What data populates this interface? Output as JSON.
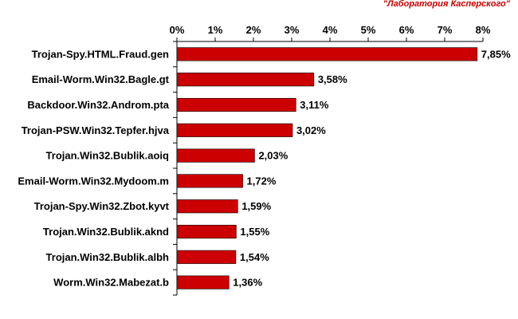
{
  "watermark": "\"Лаборатория Касперского\"",
  "colors": {
    "bar": "#cc0000",
    "bar_stroke": "#000000",
    "axis": "#000000",
    "watermark": "#cc0000"
  },
  "chart_data": {
    "type": "bar",
    "orientation": "horizontal",
    "title": "",
    "xlabel": "",
    "ylabel": "",
    "xlim": [
      0,
      8
    ],
    "xticks": [
      0,
      1,
      2,
      3,
      4,
      5,
      6,
      7,
      8
    ],
    "xtick_labels": [
      "0%",
      "1%",
      "2%",
      "3%",
      "4%",
      "5%",
      "6%",
      "7%",
      "8%"
    ],
    "x_axis_position": "top",
    "grid": false,
    "legend": "none",
    "categories": [
      "Trojan-Spy.HTML.Fraud.gen",
      "Email-Worm.Win32.Bagle.gt",
      "Backdoor.Win32.Androm.pta",
      "Trojan-PSW.Win32.Tepfer.hjva",
      "Trojan.Win32.Bublik.aoiq",
      "Email-Worm.Win32.Mydoom.m",
      "Trojan-Spy.Win32.Zbot.kyvt",
      "Trojan.Win32.Bublik.aknd",
      "Trojan.Win32.Bublik.albh",
      "Worm.Win32.Mabezat.b"
    ],
    "values": [
      7.85,
      3.58,
      3.11,
      3.02,
      2.03,
      1.72,
      1.59,
      1.55,
      1.54,
      1.36
    ],
    "value_labels": [
      "7,85%",
      "3,58%",
      "3,11%",
      "3,02%",
      "2,03%",
      "1,72%",
      "1,59%",
      "1,55%",
      "1,54%",
      "1,36%"
    ]
  }
}
